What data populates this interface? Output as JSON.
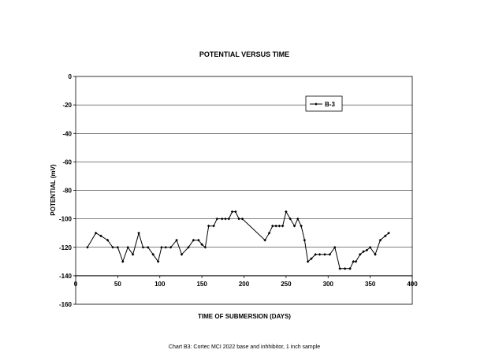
{
  "chart_data": {
    "type": "line",
    "title": "POTENTIAL VERSUS TIME",
    "xlabel": "TIME OF SUBMERSION (DAYS)",
    "ylabel": "POTENTIAL (mV)",
    "xlim": [
      0,
      400
    ],
    "ylim": [
      -160,
      0
    ],
    "xticks": [
      0,
      50,
      100,
      150,
      200,
      250,
      300,
      350,
      400
    ],
    "yticks": [
      0,
      -20,
      -40,
      -60,
      -80,
      -100,
      -120,
      -140,
      -160
    ],
    "grid": "horizontal",
    "legend": "top-right",
    "caption": "Chart B3: Cortec MCI 2022 base and inhhibitor, 1 inch sample",
    "series": [
      {
        "name": "B-3",
        "color": "#000000",
        "x": [
          14,
          24,
          30,
          38,
          44,
          50,
          56,
          62,
          68,
          75,
          80,
          86,
          92,
          98,
          102,
          107,
          113,
          120,
          126,
          134,
          140,
          146,
          150,
          154,
          158,
          164,
          168,
          174,
          178,
          182,
          186,
          190,
          194,
          198,
          225,
          230,
          234,
          238,
          242,
          246,
          250,
          255,
          260,
          264,
          268,
          272,
          276,
          280,
          285,
          290,
          296,
          302,
          308,
          314,
          320,
          326,
          330,
          333,
          338,
          342,
          346,
          350,
          356,
          362,
          368,
          372
        ],
        "y": [
          -120,
          -110,
          -112,
          -115,
          -120,
          -120,
          -130,
          -120,
          -125,
          -110,
          -120,
          -120,
          -125,
          -130,
          -120,
          -120,
          -120,
          -115,
          -125,
          -120,
          -115,
          -115,
          -118,
          -120,
          -105,
          -105,
          -100,
          -100,
          -100,
          -100,
          -95,
          -95,
          -100,
          -100,
          -115,
          -110,
          -105,
          -105,
          -105,
          -105,
          -95,
          -100,
          -105,
          -100,
          -105,
          -115,
          -130,
          -128,
          -125,
          -125,
          -125,
          -125,
          -120,
          -135,
          -135,
          -135,
          -130,
          -130,
          -125,
          -123,
          -122,
          -120,
          -125,
          -115,
          -112,
          -110
        ]
      }
    ]
  }
}
